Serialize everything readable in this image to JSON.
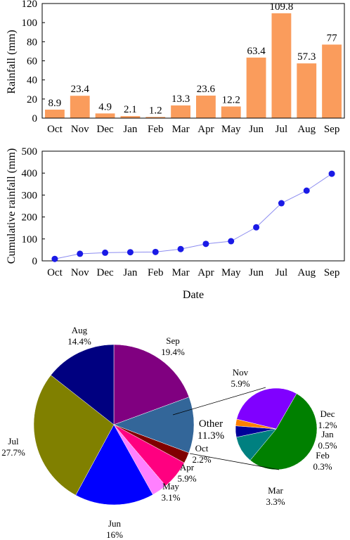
{
  "chart_data": [
    {
      "type": "bar",
      "categories": [
        "Oct",
        "Nov",
        "Dec",
        "Jan",
        "Feb",
        "Mar",
        "Apr",
        "May",
        "Jun",
        "Jul",
        "Aug",
        "Sep"
      ],
      "values": [
        8.9,
        23.4,
        4.9,
        2.1,
        1.2,
        13.3,
        23.6,
        12.2,
        63.4,
        109.8,
        57.3,
        77
      ],
      "data_labels": [
        "8.9",
        "23.4",
        "4.9",
        "2.1",
        "1.2",
        "13.3",
        "23.6",
        "12.2",
        "63.4",
        "109.8",
        "57.3",
        "77"
      ],
      "ylabel": "Rainfall (mm)",
      "ylim": [
        0,
        120
      ],
      "yticks": [
        "0",
        "20",
        "40",
        "60",
        "80",
        "100",
        "120"
      ],
      "color": "#fa9c5c",
      "grid": false
    },
    {
      "type": "line",
      "categories": [
        "Oct",
        "Nov",
        "Dec",
        "Jan",
        "Feb",
        "Mar",
        "Apr",
        "May",
        "Jun",
        "Jul",
        "Aug",
        "Sep"
      ],
      "values": [
        8.9,
        32.3,
        37.2,
        39.3,
        40.5,
        53.8,
        77.4,
        89.6,
        153.0,
        262.8,
        320.1,
        397.1
      ],
      "xlabel": "Date",
      "ylabel": "Cumulative rainfall (mm)",
      "ylim": [
        0,
        500
      ],
      "yticks": [
        "0",
        "100",
        "200",
        "300",
        "400",
        "500"
      ],
      "marker_color": "#1a1ae6",
      "line_color": "#8c8cf0",
      "grid": false
    },
    {
      "type": "pie",
      "main_slices": [
        {
          "name": "Sep",
          "pct_label": "19.4%",
          "value": 19.4,
          "color": "#800080"
        },
        {
          "name": "Other",
          "pct_label": "11.3%",
          "value": 11.3,
          "color": "#336699"
        },
        {
          "name": "Oct",
          "pct_label": "2.2%",
          "value": 2.2,
          "color": "#800000"
        },
        {
          "name": "Apr",
          "pct_label": "5.9%",
          "value": 5.9,
          "color": "#ff0080"
        },
        {
          "name": "May",
          "pct_label": "3.1%",
          "value": 3.1,
          "color": "#ff80ff"
        },
        {
          "name": "Jun",
          "pct_label": "16%",
          "value": 16.0,
          "color": "#0000ff"
        },
        {
          "name": "Jul",
          "pct_label": "27.7%",
          "value": 27.7,
          "color": "#808000"
        },
        {
          "name": "Aug",
          "pct_label": "14.4%",
          "value": 14.4,
          "color": "#000080"
        }
      ],
      "sub_slices": [
        {
          "name": "Nov",
          "pct_label": "5.9%",
          "value": 5.9,
          "color": "#008000"
        },
        {
          "name": "Dec",
          "pct_label": "1.2%",
          "value": 1.2,
          "color": "#008080"
        },
        {
          "name": "Jan",
          "pct_label": "0.5%",
          "value": 0.5,
          "color": "#000099"
        },
        {
          "name": "Feb",
          "pct_label": "0.3%",
          "value": 0.3,
          "color": "#ff8000"
        },
        {
          "name": "Mar",
          "pct_label": "3.3%",
          "value": 3.3,
          "color": "#8000ff"
        }
      ]
    }
  ]
}
